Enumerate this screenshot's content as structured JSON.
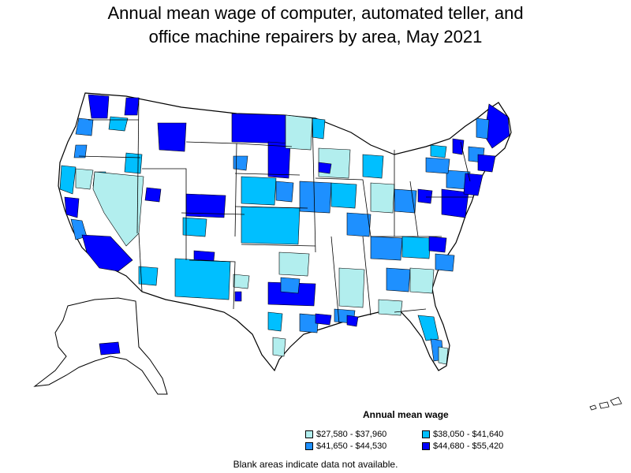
{
  "title_line1": "Annual mean wage of computer, automated teller, and",
  "title_line2": "office machine repairers by area, May 2021",
  "legend": {
    "title": "Annual mean wage",
    "items": [
      {
        "label": "$27,580 - $37,960",
        "color": "#b2eeee"
      },
      {
        "label": "$38,050 - $41,640",
        "color": "#00bfff"
      },
      {
        "label": "$41,650 - $44,530",
        "color": "#1e90ff"
      },
      {
        "label": "$44,680 - $55,420",
        "color": "#0000ff"
      }
    ]
  },
  "note": "Blank areas indicate data not available.",
  "colors": {
    "outline": "#000000",
    "no_data": "#ffffff",
    "tier1": "#b2eeee",
    "tier2": "#00bfff",
    "tier3": "#1e90ff",
    "tier4": "#0000ff"
  }
}
